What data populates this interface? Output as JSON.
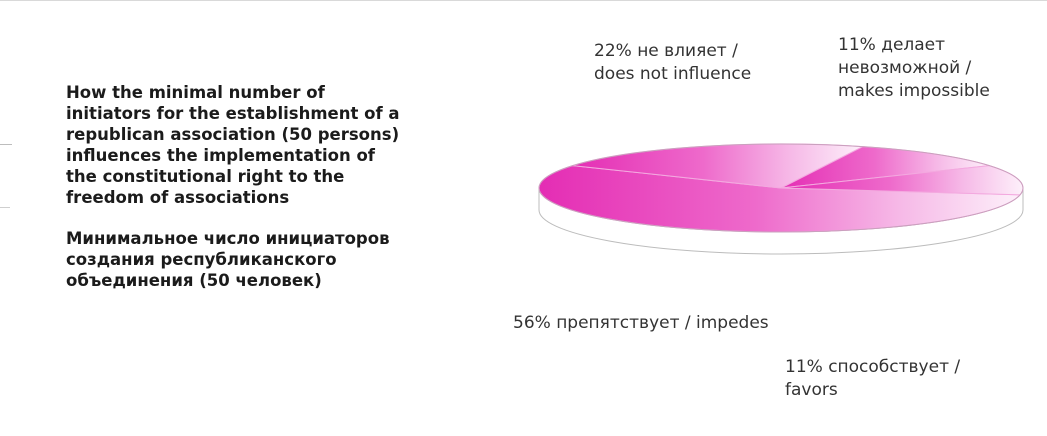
{
  "title": {
    "en_lines": [
      "How the minimal number of",
      "initiators for the establishment of a",
      "republican association (50 persons)",
      "influences the implementation of",
      "the constitutional right to the",
      "freedom of associations"
    ],
    "ru_lines": [
      "Минимальное число инициаторов",
      "создания республиканского",
      "объединения  (50 человек)"
    ]
  },
  "chart_data": {
    "type": "pie",
    "style": "3d",
    "slices": [
      {
        "label_lines": [
          "56% препятствует / impedes"
        ],
        "value": 56,
        "color": "#e833b8"
      },
      {
        "label_lines": [
          "22% не влияет /",
          "does not influence"
        ],
        "value": 22,
        "color": "#f08ad8"
      },
      {
        "label_lines": [
          "11% делает",
          "невозможной /",
          "makes impossible"
        ],
        "value": 11,
        "color": "#f7c8ee"
      },
      {
        "label_lines": [
          "11% способствует /",
          "favors"
        ],
        "value": 11,
        "color": "#fbe6f7"
      }
    ],
    "legend": "none"
  }
}
